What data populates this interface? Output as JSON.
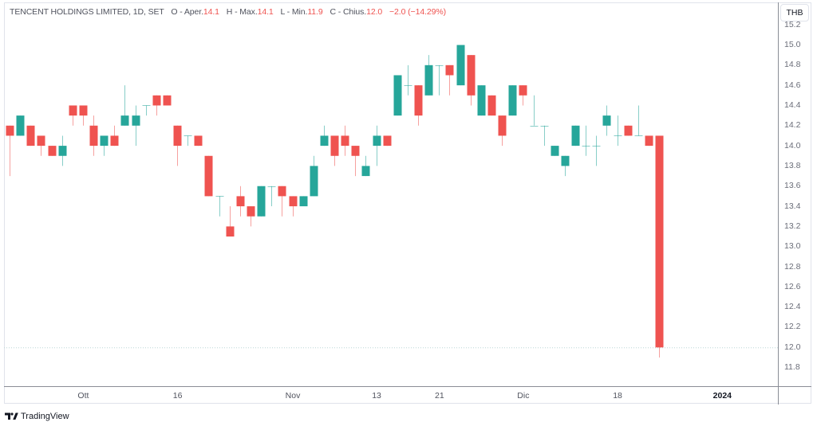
{
  "legend": {
    "title": "TENCENT HOLDINGS LIMITED, 1D, SET",
    "fields": [
      {
        "label": "O - Aper.",
        "value": "14.1"
      },
      {
        "label": "H - Max.",
        "value": "14.1"
      },
      {
        "label": "L - Min.",
        "value": "11.9"
      },
      {
        "label": "C - Chius.",
        "value": "12.0"
      }
    ],
    "change": "−2.0 (−14.29%)"
  },
  "price_axis": {
    "currency": "THB"
  },
  "branding": {
    "label": "TradingView",
    "icon": "tradingview-logo-icon"
  },
  "colors": {
    "up": "#26a69a",
    "down": "#ef5350",
    "up_wick": "rgba(38,166,154,0.55)",
    "down_wick": "rgba(239,83,80,0.55)",
    "price_line": "#bcd6d6"
  },
  "chart_data": {
    "type": "candlestick",
    "title": "TENCENT HOLDINGS LIMITED, 1D, SET",
    "interval": "1D",
    "exchange": "SET",
    "currency": "THB",
    "xlabel": "",
    "ylabel": "",
    "ylim": [
      11.8,
      15.2
    ],
    "grid": false,
    "legend_position": "top-left",
    "last_price": 12.0,
    "open": [
      14.2,
      14.1,
      14.2,
      14.1,
      14.0,
      13.9,
      14.4,
      14.4,
      14.2,
      14.0,
      14.1,
      14.2,
      14.2,
      14.4,
      14.5,
      14.5,
      14.2,
      14.1,
      14.1,
      13.9,
      13.5,
      13.2,
      13.5,
      13.4,
      13.3,
      13.6,
      13.6,
      13.5,
      13.4,
      13.5,
      14.0,
      14.1,
      14.1,
      14.0,
      13.7,
      14.0,
      14.1,
      14.3,
      14.6,
      14.6,
      14.5,
      14.8,
      14.8,
      14.6,
      14.9,
      14.3,
      14.5,
      14.3,
      14.3,
      14.6,
      14.2,
      14.2,
      13.9,
      13.8,
      14.0,
      14.0,
      14.0,
      14.2,
      14.1,
      14.2,
      14.1,
      14.1,
      14.1
    ],
    "high": [
      14.2,
      14.3,
      14.2,
      14.1,
      14.0,
      14.1,
      14.4,
      14.4,
      14.3,
      14.1,
      14.2,
      14.6,
      14.4,
      14.4,
      14.5,
      14.5,
      14.2,
      14.1,
      14.1,
      13.9,
      13.5,
      13.4,
      13.6,
      13.4,
      13.6,
      13.6,
      13.6,
      13.5,
      13.5,
      13.9,
      14.2,
      14.1,
      14.2,
      14.0,
      13.9,
      14.2,
      14.1,
      14.7,
      14.8,
      14.6,
      14.9,
      14.8,
      14.8,
      15.0,
      14.9,
      14.6,
      14.5,
      14.3,
      14.6,
      14.6,
      14.5,
      14.2,
      14.0,
      13.9,
      14.2,
      14.2,
      14.1,
      14.4,
      14.3,
      14.2,
      14.4,
      14.1,
      14.1
    ],
    "low": [
      13.7,
      14.1,
      14.0,
      13.9,
      13.9,
      13.8,
      14.2,
      14.2,
      13.9,
      13.9,
      14.0,
      14.2,
      14.0,
      14.3,
      14.3,
      14.4,
      13.8,
      14.0,
      14.0,
      13.5,
      13.3,
      13.1,
      13.3,
      13.2,
      13.3,
      13.4,
      13.3,
      13.3,
      13.4,
      13.5,
      14.0,
      13.8,
      13.9,
      13.7,
      13.7,
      13.8,
      14.0,
      14.3,
      14.5,
      14.2,
      14.5,
      14.5,
      14.5,
      14.6,
      14.4,
      14.3,
      14.3,
      14.0,
      14.3,
      14.4,
      14.2,
      14.0,
      13.9,
      13.7,
      14.0,
      13.9,
      13.8,
      14.1,
      14.0,
      14.1,
      14.1,
      14.0,
      11.9
    ],
    "close": [
      14.1,
      14.3,
      14.0,
      14.0,
      13.9,
      14.0,
      14.3,
      14.3,
      14.0,
      14.1,
      14.0,
      14.3,
      14.3,
      14.4,
      14.4,
      14.4,
      14.0,
      14.1,
      14.0,
      13.5,
      13.5,
      13.1,
      13.4,
      13.3,
      13.6,
      13.6,
      13.5,
      13.4,
      13.5,
      13.8,
      14.1,
      13.9,
      14.0,
      13.9,
      13.8,
      14.1,
      14.0,
      14.7,
      14.6,
      14.3,
      14.8,
      14.8,
      14.7,
      15.0,
      14.5,
      14.6,
      14.3,
      14.1,
      14.6,
      14.5,
      14.2,
      14.2,
      14.0,
      13.9,
      14.2,
      14.0,
      14.0,
      14.3,
      14.1,
      14.1,
      14.1,
      14.0,
      12.0
    ],
    "x_ticks": [
      {
        "label": "Ott",
        "index": 7,
        "bold": false
      },
      {
        "label": "16",
        "index": 16,
        "bold": false
      },
      {
        "label": "Nov",
        "index": 27,
        "bold": false
      },
      {
        "label": "13",
        "index": 35,
        "bold": false
      },
      {
        "label": "21",
        "index": 41,
        "bold": false
      },
      {
        "label": "Dic",
        "index": 49,
        "bold": false
      },
      {
        "label": "18",
        "index": 58,
        "bold": false
      },
      {
        "label": "2024",
        "index": 68,
        "bold": true
      }
    ],
    "y_ticks": [
      "15.2",
      "15.0",
      "14.8",
      "14.6",
      "14.4",
      "14.2",
      "14.0",
      "13.8",
      "13.6",
      "13.4",
      "13.2",
      "13.0",
      "12.8",
      "12.6",
      "12.4",
      "12.2",
      "12.0",
      "11.8"
    ]
  }
}
